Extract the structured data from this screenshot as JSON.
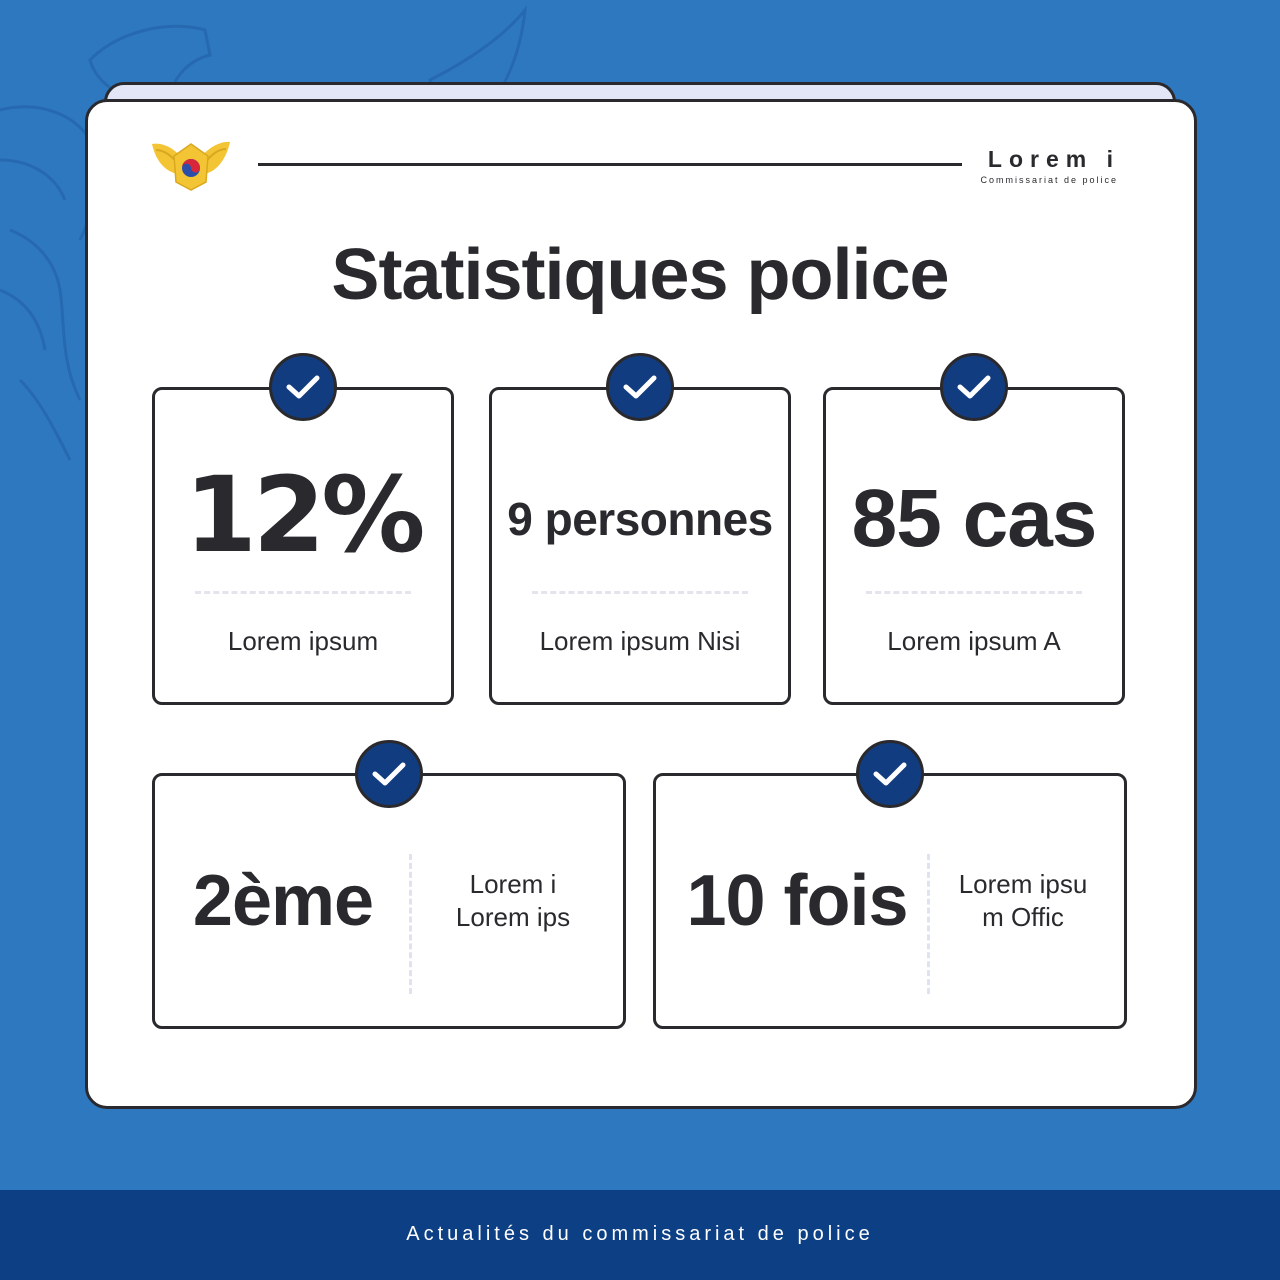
{
  "header": {
    "org_name": "Lorem i",
    "org_subtitle": "Commissariat de police"
  },
  "title": "Statistiques police",
  "stats_top": [
    {
      "value": "12%",
      "label": "Lorem ipsum"
    },
    {
      "value": "9 personnes",
      "label": "Lorem ipsum Nisi"
    },
    {
      "value": "85 cas",
      "label": "Lorem ipsum A"
    }
  ],
  "stats_bottom": [
    {
      "value": "2ème",
      "label_line1": "Lorem i",
      "label_line2": "Lorem ips"
    },
    {
      "value": "10 fois",
      "label_line1": "Lorem ipsu",
      "label_line2": "m Offic"
    }
  ],
  "footer": {
    "text": "Actualités du commissariat de police"
  },
  "colors": {
    "background": "#2e78c0",
    "footer": "#0c3f84",
    "check_badge": "#123c80",
    "ink": "#2a2a2e",
    "emblem_gold": "#f3c433"
  },
  "icons": {
    "badge": "check-icon",
    "logo": "police-emblem-icon"
  }
}
